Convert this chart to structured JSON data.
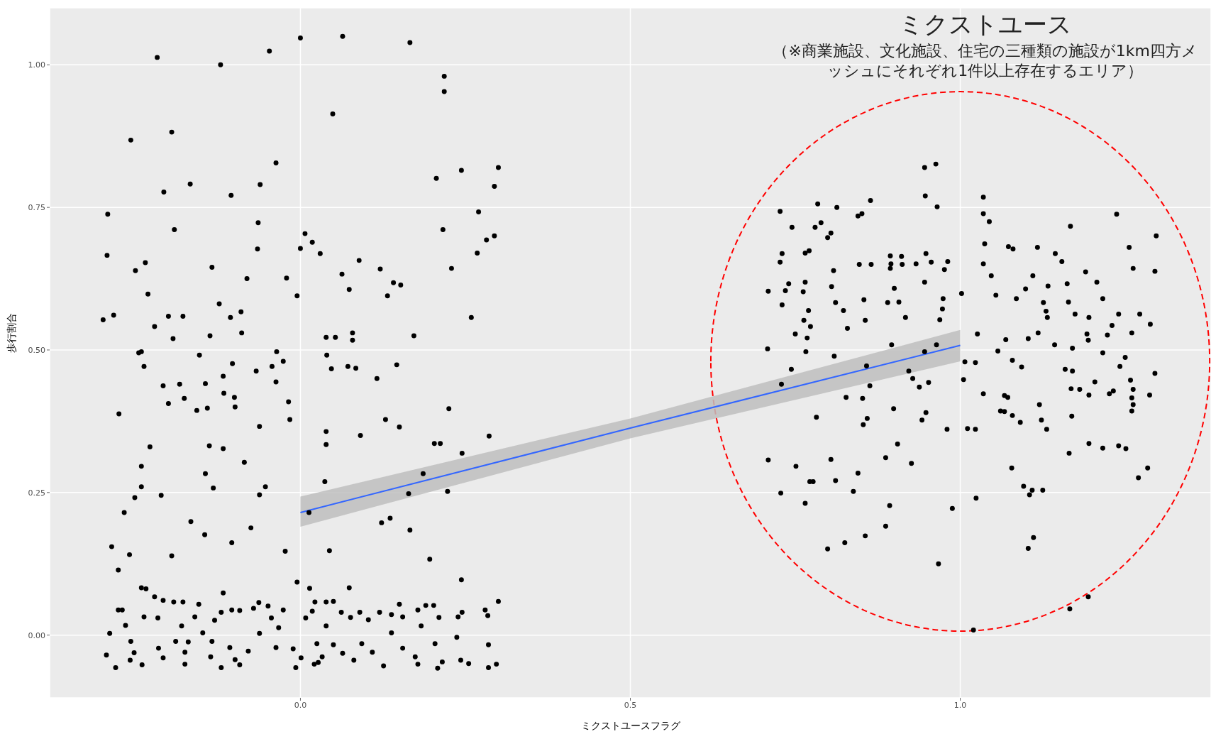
{
  "chart_data": {
    "type": "scatter",
    "xlabel": "ミクストユースフラグ",
    "ylabel": "歩行割合",
    "annotations": [
      "ミクストユース",
      "（※商業施設、文化施設、住宅の三種類の施設が1km四方メッシュにそれぞれ1件以上存在するエリア）"
    ],
    "xlim": [
      -0.38,
      1.38
    ],
    "ylim": [
      -0.11,
      1.1
    ],
    "xticks": [
      {
        "value": 0,
        "label": "0.0"
      },
      {
        "value": 0.5,
        "label": "0.5"
      },
      {
        "value": 1,
        "label": "1.0"
      }
    ],
    "yticks": [
      {
        "value": 0,
        "label": "0.00"
      },
      {
        "value": 0.25,
        "label": "0.25"
      },
      {
        "value": 0.5,
        "label": "0.50"
      },
      {
        "value": 0.75,
        "label": "0.75"
      },
      {
        "value": 1,
        "label": "1.00"
      }
    ],
    "grid": true,
    "legend": false,
    "series": [
      {
        "type": "line",
        "color": "#3366ff",
        "marker": "none",
        "x": [
          0,
          0.5,
          1
        ],
        "values": [
          0.215,
          0.363,
          0.508
        ],
        "lower": [
          0.19,
          0.345,
          0.48
        ],
        "upper": [
          0.243,
          0.38,
          0.535
        ]
      },
      {
        "type": "scatter",
        "color": "#000000",
        "marker": "circle",
        "x": [
          0.0,
          0.064,
          0.166,
          -0.217,
          -0.047,
          -0.121,
          0.218,
          0.218,
          0.049,
          -0.257,
          -0.195,
          -0.037,
          0.3,
          0.244,
          0.206,
          -0.167,
          -0.061,
          0.294,
          -0.207,
          -0.105,
          0.27,
          -0.292,
          -0.064,
          -0.191,
          0.216,
          0.007,
          0.018,
          0.294,
          0.282,
          0.03,
          0.268,
          -0.065,
          0.0,
          -0.293,
          -0.235,
          0.089,
          0.121,
          -0.134,
          -0.25,
          0.229,
          0.063,
          -0.081,
          -0.021,
          0.141,
          0.152,
          -0.231,
          -0.005,
          0.132,
          0.074,
          -0.123,
          -0.09,
          -0.2,
          -0.283,
          -0.178,
          -0.299,
          -0.106,
          0.259,
          -0.221,
          0.172,
          0.039,
          0.053,
          0.079,
          0.079,
          -0.089,
          -0.137,
          -0.193,
          -0.245,
          -0.241,
          -0.036,
          -0.153,
          -0.026,
          0.04,
          -0.043,
          -0.237,
          -0.103,
          -0.067,
          0.047,
          0.072,
          0.084,
          0.146,
          0.116,
          -0.117,
          -0.037,
          -0.208,
          -0.144,
          -0.183,
          -0.2,
          -0.018,
          -0.176,
          -0.116,
          -0.1,
          -0.157,
          -0.141,
          -0.275,
          -0.099,
          -0.016,
          0.225,
          0.129,
          -0.062,
          0.15,
          0.039,
          0.091,
          0.286,
          0.039,
          0.203,
          0.212,
          -0.138,
          -0.228,
          -0.117,
          0.245,
          -0.085,
          -0.241,
          -0.144,
          0.186,
          -0.241,
          -0.132,
          -0.053,
          -0.062,
          0.164,
          0.223,
          0.037,
          -0.251,
          -0.211,
          -0.267,
          0.013,
          0.136,
          0.123,
          -0.166,
          -0.145,
          -0.075,
          0.166,
          -0.104,
          -0.286,
          -0.023,
          0.044,
          -0.259,
          -0.195,
          0.196,
          -0.276,
          0.244,
          -0.005,
          -0.117,
          -0.241,
          -0.234,
          0.074,
          0.014,
          -0.221,
          -0.208,
          -0.192,
          -0.178,
          -0.154,
          -0.063,
          -0.049,
          0.022,
          0.039,
          0.05,
          0.15,
          0.19,
          0.202,
          0.3,
          0.28,
          -0.276,
          -0.27,
          -0.12,
          -0.104,
          -0.092,
          -0.071,
          -0.026,
          0.018,
          0.062,
          0.09,
          0.12,
          0.138,
          0.178,
          0.245,
          -0.237,
          -0.216,
          -0.16,
          -0.044,
          0.008,
          0.076,
          0.103,
          0.155,
          0.21,
          0.239,
          0.284,
          -0.13,
          -0.265,
          -0.18,
          -0.033,
          0.039,
          0.183,
          -0.289,
          -0.148,
          -0.062,
          0.138,
          0.237,
          -0.257,
          -0.189,
          -0.17,
          -0.134,
          0.025,
          0.05,
          0.093,
          0.204,
          0.285,
          -0.215,
          -0.107,
          -0.037,
          -0.011,
          0.155,
          -0.252,
          -0.175,
          -0.079,
          0.064,
          0.109,
          -0.294,
          -0.208,
          -0.136,
          0.001,
          0.033,
          0.174,
          -0.258,
          -0.099,
          0.027,
          0.081,
          0.215,
          0.243,
          -0.175,
          -0.24,
          -0.092,
          0.021,
          0.178,
          0.297,
          -0.28,
          -0.12,
          -0.007,
          0.126,
          0.208,
          0.285,
          0.255,
          0.946,
          0.963,
          1.035,
          0.947,
          0.864,
          0.784,
          0.813,
          0.965,
          0.727,
          0.851,
          1.035,
          1.237,
          1.044,
          0.789,
          0.845,
          0.745,
          0.78,
          1.167,
          1.297,
          0.799,
          0.804,
          1.073,
          1.037,
          1.256,
          1.08,
          1.117,
          0.73,
          0.765,
          0.771,
          0.894,
          0.911,
          0.948,
          1.144,
          0.727,
          0.847,
          0.865,
          0.895,
          0.912,
          0.933,
          0.956,
          0.981,
          1.035,
          1.154,
          1.262,
          1.295,
          1.19,
          0.808,
          0.976,
          0.894,
          1.047,
          1.11,
          0.74,
          0.765,
          0.946,
          1.162,
          1.207,
          0.735,
          0.762,
          0.9,
          1.099,
          1.133,
          0.805,
          0.709,
          1.002,
          1.054,
          1.085,
          0.974,
          0.854,
          1.216,
          1.126,
          0.73,
          0.811,
          0.89,
          0.907,
          1.164,
          1.13,
          0.973,
          0.77,
          0.823,
          1.132,
          1.174,
          1.195,
          1.24,
          1.272,
          0.763,
          0.856,
          0.969,
          0.917,
          1.23,
          1.288,
          1.118,
          0.773,
          0.829,
          1.223,
          1.026,
          1.192,
          0.75,
          1.26,
          0.768,
          1.194,
          1.069,
          1.103,
          0.896,
          1.143,
          0.964,
          0.708,
          1.17,
          1.057,
          0.766,
          0.946,
          1.216,
          0.809,
          1.007,
          1.023,
          1.079,
          1.25,
          0.858,
          1.159,
          0.744,
          1.093,
          1.242,
          1.17,
          0.922,
          1.295,
          0.928,
          0.952,
          1.204,
          1.258,
          0.729,
          0.863,
          1.005,
          1.168,
          0.938,
          1.181,
          1.262,
          1.232,
          1.195,
          1.226,
          1.287,
          1.067,
          1.035,
          0.827,
          0.852,
          1.072,
          1.26,
          1.262,
          1.26,
          1.067,
          1.12,
          0.899,
          1.061,
          0.782,
          0.859,
          1.079,
          1.169,
          0.948,
          0.942,
          1.091,
          1.123,
          0.853,
          0.98,
          1.011,
          1.023,
          1.131,
          0.905,
          1.216,
          1.24,
          1.251,
          1.195,
          0.887,
          0.804,
          0.709,
          1.165,
          1.078,
          0.751,
          0.926,
          1.284,
          0.845,
          1.27,
          0.772,
          0.777,
          0.811,
          1.096,
          1.109,
          1.125,
          0.838,
          0.728,
          1.105,
          1.024,
          0.765,
          0.893,
          0.988,
          1.111,
          0.887,
          0.856,
          0.825,
          0.799,
          1.103,
          0.967,
          1.194,
          1.166,
          1.02
        ],
        "values": [
          1.047,
          1.05,
          1.039,
          1.013,
          1.024,
          1.0,
          0.98,
          0.953,
          0.914,
          0.868,
          0.882,
          0.828,
          0.82,
          0.815,
          0.801,
          0.791,
          0.79,
          0.787,
          0.777,
          0.771,
          0.742,
          0.738,
          0.723,
          0.711,
          0.711,
          0.704,
          0.689,
          0.7,
          0.693,
          0.669,
          0.67,
          0.677,
          0.678,
          0.666,
          0.653,
          0.657,
          0.642,
          0.645,
          0.639,
          0.643,
          0.633,
          0.625,
          0.626,
          0.618,
          0.614,
          0.598,
          0.595,
          0.595,
          0.606,
          0.581,
          0.567,
          0.559,
          0.561,
          0.559,
          0.553,
          0.557,
          0.557,
          0.541,
          0.525,
          0.522,
          0.522,
          0.53,
          0.517,
          0.53,
          0.525,
          0.52,
          0.495,
          0.497,
          0.497,
          0.491,
          0.48,
          0.491,
          0.471,
          0.471,
          0.476,
          0.463,
          0.467,
          0.471,
          0.468,
          0.474,
          0.45,
          0.454,
          0.444,
          0.437,
          0.441,
          0.44,
          0.406,
          0.409,
          0.415,
          0.424,
          0.417,
          0.394,
          0.398,
          0.388,
          0.4,
          0.378,
          0.397,
          0.378,
          0.366,
          0.365,
          0.357,
          0.35,
          0.349,
          0.334,
          0.336,
          0.336,
          0.332,
          0.33,
          0.327,
          0.319,
          0.303,
          0.296,
          0.283,
          0.283,
          0.26,
          0.258,
          0.26,
          0.246,
          0.248,
          0.252,
          0.269,
          0.241,
          0.245,
          0.215,
          0.215,
          0.205,
          0.197,
          0.199,
          0.176,
          0.188,
          0.184,
          0.162,
          0.155,
          0.147,
          0.148,
          0.141,
          0.139,
          0.133,
          0.114,
          0.097,
          0.093,
          0.074,
          0.083,
          0.081,
          0.083,
          0.082,
          0.067,
          0.061,
          0.058,
          0.058,
          0.054,
          0.057,
          0.051,
          0.058,
          0.058,
          0.059,
          0.054,
          0.052,
          0.052,
          0.059,
          0.044,
          0.044,
          0.044,
          0.04,
          0.044,
          0.043,
          0.047,
          0.044,
          0.042,
          0.04,
          0.04,
          0.04,
          0.036,
          0.044,
          0.04,
          0.032,
          0.03,
          0.032,
          0.03,
          0.03,
          0.031,
          0.027,
          0.032,
          0.031,
          0.032,
          0.034,
          0.026,
          0.017,
          0.016,
          0.013,
          0.016,
          0.016,
          0.003,
          0.004,
          0.003,
          0.004,
          -0.004,
          -0.011,
          -0.011,
          -0.012,
          -0.011,
          -0.015,
          -0.017,
          -0.015,
          -0.015,
          -0.017,
          -0.023,
          -0.022,
          -0.022,
          -0.024,
          -0.023,
          -0.031,
          -0.03,
          -0.028,
          -0.032,
          -0.03,
          -0.035,
          -0.04,
          -0.038,
          -0.04,
          -0.038,
          -0.038,
          -0.044,
          -0.043,
          -0.048,
          -0.044,
          -0.047,
          -0.044,
          -0.051,
          -0.052,
          -0.052,
          -0.051,
          -0.051,
          -0.051,
          -0.057,
          -0.057,
          -0.057,
          -0.054,
          -0.058,
          -0.057,
          -0.05,
          0.82,
          0.826,
          0.768,
          0.77,
          0.762,
          0.756,
          0.75,
          0.751,
          0.743,
          0.739,
          0.739,
          0.738,
          0.725,
          0.723,
          0.735,
          0.715,
          0.715,
          0.717,
          0.7,
          0.697,
          0.705,
          0.681,
          0.686,
          0.68,
          0.677,
          0.68,
          0.669,
          0.67,
          0.674,
          0.665,
          0.664,
          0.669,
          0.669,
          0.654,
          0.65,
          0.65,
          0.651,
          0.65,
          0.651,
          0.654,
          0.655,
          0.651,
          0.655,
          0.643,
          0.638,
          0.637,
          0.639,
          0.641,
          0.643,
          0.63,
          0.63,
          0.616,
          0.619,
          0.619,
          0.616,
          0.619,
          0.604,
          0.602,
          0.608,
          0.607,
          0.612,
          0.611,
          0.603,
          0.599,
          0.596,
          0.59,
          0.59,
          0.588,
          0.59,
          0.583,
          0.579,
          0.583,
          0.583,
          0.584,
          0.584,
          0.568,
          0.572,
          0.569,
          0.569,
          0.557,
          0.563,
          0.557,
          0.563,
          0.563,
          0.552,
          0.552,
          0.553,
          0.557,
          0.543,
          0.545,
          0.53,
          0.541,
          0.538,
          0.526,
          0.528,
          0.528,
          0.528,
          0.53,
          0.521,
          0.517,
          0.518,
          0.52,
          0.509,
          0.509,
          0.509,
          0.502,
          0.503,
          0.498,
          0.497,
          0.497,
          0.495,
          0.489,
          0.479,
          0.478,
          0.482,
          0.487,
          0.472,
          0.466,
          0.466,
          0.47,
          0.471,
          0.463,
          0.463,
          0.459,
          0.45,
          0.443,
          0.444,
          0.447,
          0.44,
          0.437,
          0.448,
          0.432,
          0.435,
          0.431,
          0.431,
          0.428,
          0.421,
          0.423,
          0.421,
          0.42,
          0.423,
          0.417,
          0.415,
          0.417,
          0.416,
          0.404,
          0.393,
          0.392,
          0.404,
          0.397,
          0.393,
          0.382,
          0.38,
          0.385,
          0.384,
          0.39,
          0.377,
          0.373,
          0.377,
          0.369,
          0.361,
          0.362,
          0.361,
          0.361,
          0.335,
          0.328,
          0.332,
          0.327,
          0.336,
          0.311,
          0.308,
          0.307,
          0.319,
          0.293,
          0.296,
          0.301,
          0.293,
          0.284,
          0.276,
          0.269,
          0.269,
          0.271,
          0.261,
          0.254,
          0.254,
          0.252,
          0.249,
          0.246,
          0.24,
          0.231,
          0.227,
          0.222,
          0.171,
          0.191,
          0.174,
          0.162,
          0.151,
          0.152,
          0.125,
          0.067,
          0.046,
          0.009
        ]
      }
    ]
  }
}
